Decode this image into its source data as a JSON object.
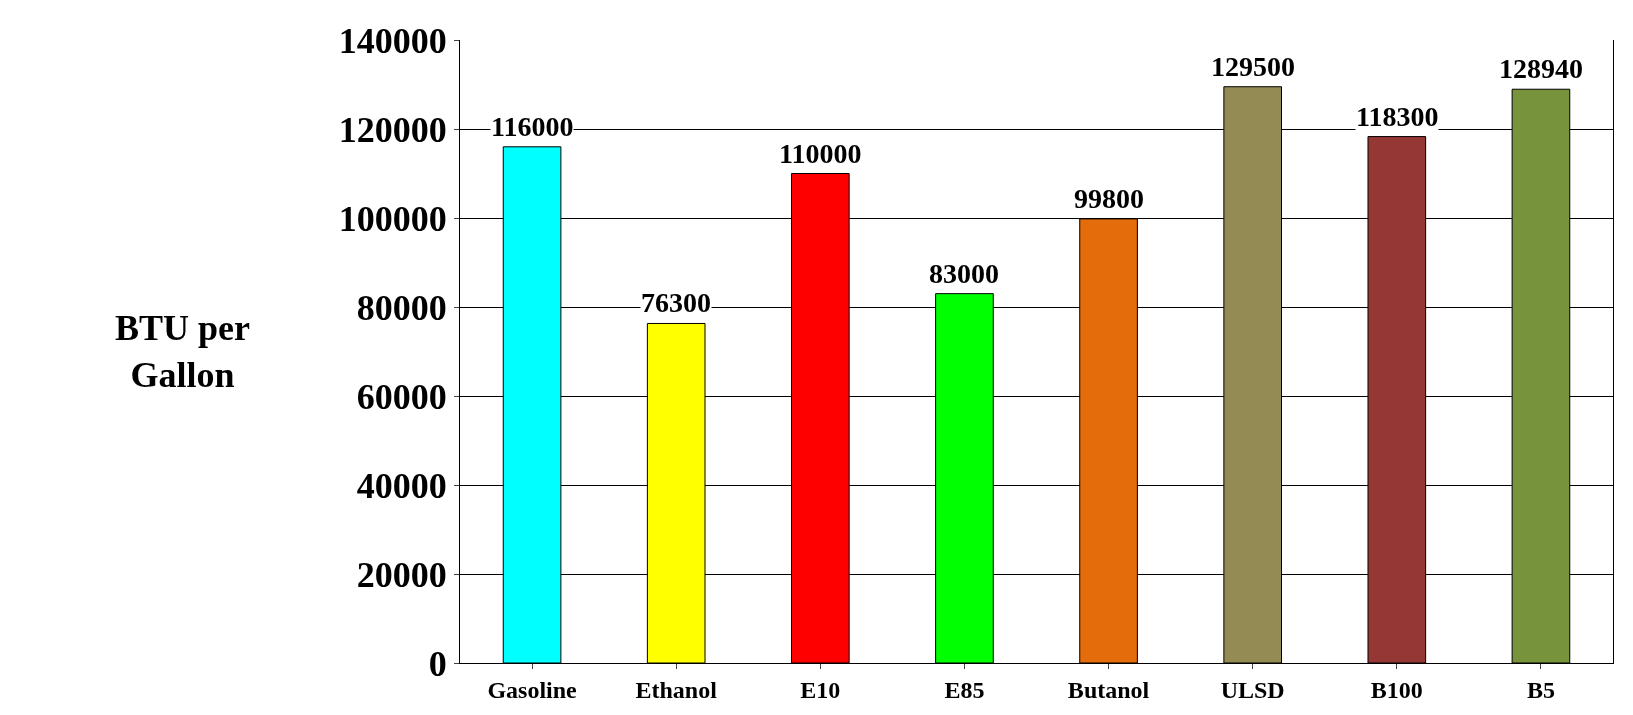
{
  "chart_data": {
    "type": "bar",
    "ylabel": "BTU per Gallon",
    "categories": [
      "Gasoline",
      "Ethanol",
      "E10",
      "E85",
      "Butanol",
      "ULSD",
      "B100",
      "B5"
    ],
    "values": [
      116000,
      76300,
      110000,
      83000,
      99800,
      129500,
      118300,
      128940
    ],
    "colors": [
      "#00ffff",
      "#ffff00",
      "#ff0000",
      "#00ff00",
      "#e46c0a",
      "#948a54",
      "#953735",
      "#77933c"
    ],
    "ylim": [
      0,
      140000
    ],
    "yticks": [
      0,
      20000,
      40000,
      60000,
      80000,
      100000,
      120000,
      140000
    ],
    "grid": "y",
    "data_labels": true
  }
}
